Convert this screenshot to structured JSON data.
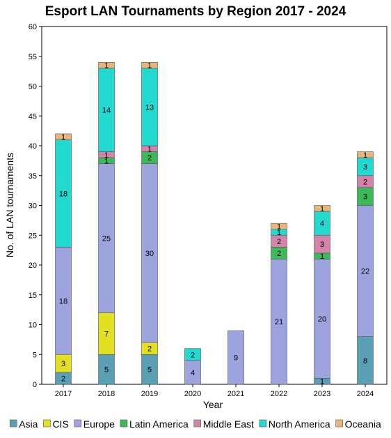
{
  "chart_data": {
    "type": "bar",
    "stacked": true,
    "title": "Esport LAN Tournaments by Region 2017 - 2024",
    "xlabel": "Year",
    "ylabel": "No. of LAN tournaments",
    "ylim": [
      0,
      60
    ],
    "yticks": [
      0,
      5,
      10,
      15,
      20,
      25,
      30,
      35,
      40,
      45,
      50,
      55,
      60
    ],
    "grid": false,
    "legend_position": "bottom",
    "categories": [
      "2017",
      "2018",
      "2019",
      "2020",
      "2021",
      "2022",
      "2023",
      "2024"
    ],
    "series": [
      {
        "name": "Asia",
        "color": "#5b9fb4",
        "values": [
          2,
          5,
          5,
          0,
          0,
          0,
          1,
          8
        ]
      },
      {
        "name": "CIS",
        "color": "#e3e024",
        "values": [
          3,
          7,
          2,
          0,
          0,
          0,
          0,
          0
        ]
      },
      {
        "name": "Europe",
        "color": "#9da3dd",
        "values": [
          18,
          25,
          30,
          4,
          9,
          21,
          20,
          22
        ]
      },
      {
        "name": "Latin America",
        "color": "#3db85a",
        "values": [
          0,
          1,
          2,
          0,
          0,
          2,
          1,
          3
        ]
      },
      {
        "name": "Middle East",
        "color": "#d384a8",
        "values": [
          0,
          1,
          1,
          0,
          0,
          2,
          3,
          2
        ]
      },
      {
        "name": "North America",
        "color": "#22d8cf",
        "values": [
          18,
          14,
          13,
          2,
          0,
          1,
          4,
          3
        ]
      },
      {
        "name": "Oceania",
        "color": "#e8b57c",
        "values": [
          1,
          1,
          1,
          0,
          0,
          1,
          1,
          1
        ]
      }
    ]
  }
}
